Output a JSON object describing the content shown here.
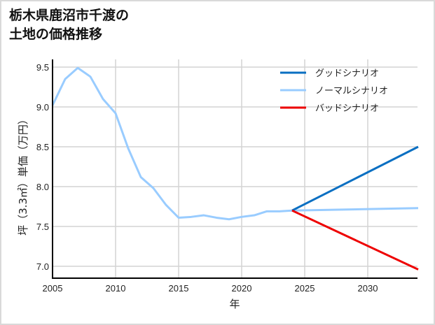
{
  "title_lines": [
    "栃木県鹿沼市千渡の",
    "土地の価格推移"
  ],
  "chart_data": {
    "type": "line",
    "title": "栃木県鹿沼市千渡の土地の価格推移",
    "xlabel": "年",
    "ylabel": "坪（3.3㎡）単価（万円）",
    "xlim": [
      2005,
      2034
    ],
    "ylim": [
      6.83,
      9.6
    ],
    "xticks": [
      2005,
      2010,
      2015,
      2020,
      2025,
      2030
    ],
    "yticks": [
      7.0,
      7.5,
      8.0,
      8.5,
      9.0,
      9.5
    ],
    "ytick_labels": [
      "7.0",
      "7.5",
      "8.0",
      "8.5",
      "9.0",
      "9.5"
    ],
    "grid": true,
    "legend_position": "upper right",
    "series": [
      {
        "name": "グッドシナリオ",
        "color": "#0a6fc2",
        "x": [
          2024,
          2034
        ],
        "values": [
          7.7,
          8.5
        ]
      },
      {
        "name": "ノーマルシナリオ",
        "color": "#99ccff",
        "x": [
          2005,
          2006,
          2007,
          2008,
          2009,
          2010,
          2011,
          2012,
          2013,
          2014,
          2015,
          2016,
          2017,
          2018,
          2019,
          2020,
          2021,
          2022,
          2023,
          2024,
          2034
        ],
        "values": [
          9.02,
          9.35,
          9.49,
          9.38,
          9.1,
          8.92,
          8.48,
          8.12,
          7.98,
          7.77,
          7.61,
          7.62,
          7.64,
          7.61,
          7.59,
          7.62,
          7.64,
          7.69,
          7.69,
          7.7,
          7.73
        ]
      },
      {
        "name": "バッドシナリオ",
        "color": "#ee0000",
        "x": [
          2024,
          2034
        ],
        "values": [
          7.7,
          6.96
        ]
      }
    ]
  }
}
